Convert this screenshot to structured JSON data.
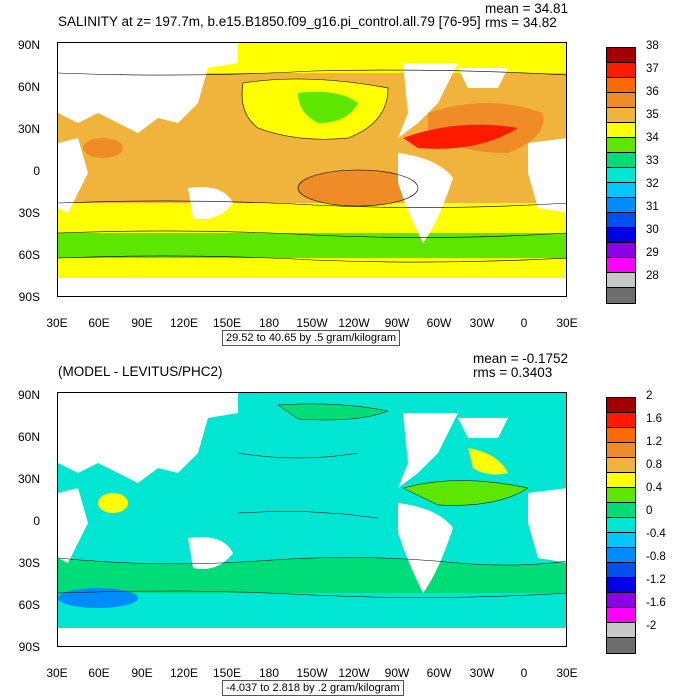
{
  "panels": [
    {
      "title": "SALINITY at z= 197.7m, b.e15.B1850.f09_g16.pi_control.all.79 [76-95]",
      "stats": {
        "mean": "mean = 34.81",
        "rms": "rms = 34.82"
      },
      "caption": "29.52 to 40.65 by .5 gram/kilogram",
      "legend": {
        "labels": [
          "38",
          "37",
          "36",
          "35",
          "34",
          "33",
          "32",
          "31",
          "30",
          "29",
          "28"
        ],
        "colors": [
          "#a50000",
          "#ff1a00",
          "#ff6a00",
          "#f08c28",
          "#f0b43c",
          "#ffff00",
          "#5ce600",
          "#00dc78",
          "#00e6d2",
          "#00c8ff",
          "#008cff",
          "#0050f0",
          "#0000e6",
          "#8c00e6",
          "#ff00ff",
          "#c8c8c8",
          "#6e6e6e"
        ],
        "fill_colors_top_to_bottom": [
          "#a50000",
          "#ff1a00",
          "#ff6a00",
          "#f08c28",
          "#f0b43c",
          "#ffff00",
          "#5ce600",
          "#00dc78",
          "#00e6d2",
          "#00c8ff",
          "#008cff",
          "#0050f0",
          "#0000e6",
          "#8c00e6",
          "#ff00ff",
          "#c8c8c8",
          "#6e6e6e"
        ]
      }
    },
    {
      "title": "(MODEL - LEVITUS/PHC2)",
      "stats": {
        "mean": "mean = -0.1752",
        "rms": "rms = 0.3403"
      },
      "caption": "-4.037 to 2.818 by .2 gram/kilogram",
      "legend": {
        "labels": [
          "2",
          "1.6",
          "1.2",
          "0.8",
          "0.4",
          "0",
          "-0.4",
          "-0.8",
          "-1.2",
          "-1.6",
          "-2"
        ],
        "fill_colors_top_to_bottom": [
          "#a50000",
          "#ff1a00",
          "#ff6a00",
          "#f08c28",
          "#f0b43c",
          "#ffff00",
          "#5ce600",
          "#00dc78",
          "#00e6d2",
          "#00c8ff",
          "#008cff",
          "#0050f0",
          "#0000e6",
          "#8c00e6",
          "#ff00ff",
          "#c8c8c8",
          "#6e6e6e"
        ]
      }
    }
  ],
  "axes": {
    "lat_labels": [
      "90N",
      "60N",
      "30N",
      "0",
      "30S",
      "60S",
      "90S"
    ],
    "lon_labels": [
      "30E",
      "60E",
      "90E",
      "120E",
      "150E",
      "180",
      "150W",
      "120W",
      "90W",
      "60W",
      "30W",
      "0",
      "30E"
    ]
  },
  "colors": {
    "land": "#ffffff",
    "contour_line": "#000000"
  }
}
